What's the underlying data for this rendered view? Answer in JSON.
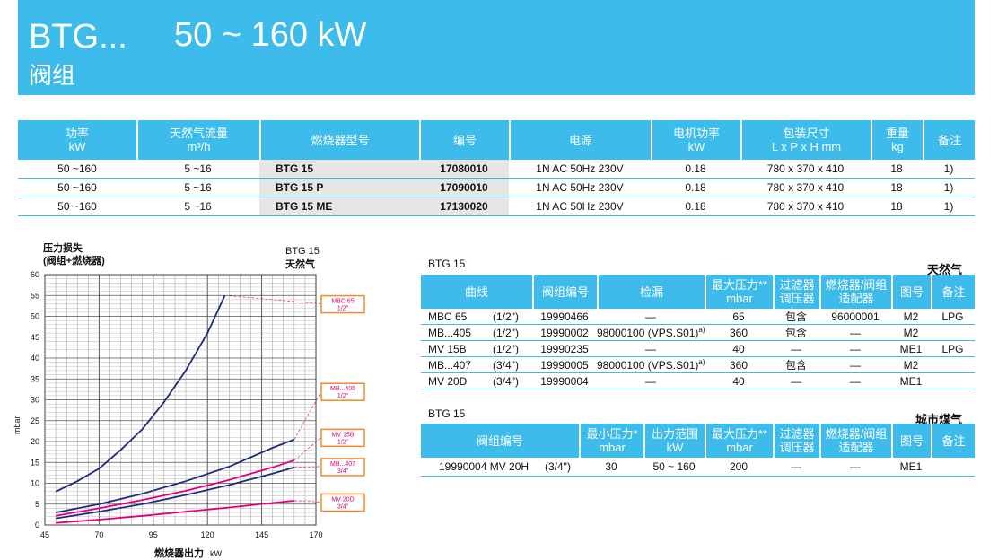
{
  "header": {
    "model": "BTG...",
    "power_range": "50 ~ 160 kW",
    "subtitle": "阀组"
  },
  "main_table": {
    "headers": [
      {
        "l1": "功率",
        "l2": "kW"
      },
      {
        "l1": "天然气流量",
        "l2": "m³/h"
      },
      {
        "l1": "燃烧器型号",
        "l2": ""
      },
      {
        "l1": "编号",
        "l2": ""
      },
      {
        "l1": "电源",
        "l2": ""
      },
      {
        "l1": "电机功率",
        "l2": "kW"
      },
      {
        "l1": "包装尺寸",
        "l2": "L x P x H  mm"
      },
      {
        "l1": "重量",
        "l2": "kg"
      },
      {
        "l1": "备注",
        "l2": ""
      }
    ],
    "rows": [
      [
        "50 ~160",
        "5 ~16",
        "BTG 15",
        "17080010",
        "1N AC 50Hz 230V",
        "0.18",
        "780 x 370 x 410",
        "18",
        "1)"
      ],
      [
        "50 ~160",
        "5 ~16",
        "BTG 15 P",
        "17090010",
        "1N AC 50Hz 230V",
        "0.18",
        "780 x 370 x 410",
        "18",
        "1)"
      ],
      [
        "50 ~160",
        "5 ~16",
        "BTG 15 ME",
        "17130020",
        "1N AC 50Hz 230V",
        "0.18",
        "780 x 370 x 410",
        "18",
        "1)"
      ]
    ]
  },
  "natural_gas_table": {
    "burner": "BTG 15",
    "gas": "天然气",
    "headers": [
      {
        "l1": "曲线",
        "l2": ""
      },
      {
        "l1": "阀组编号",
        "l2": ""
      },
      {
        "l1": "检漏",
        "l2": ""
      },
      {
        "l1": "最大压力**",
        "l2": "mbar"
      },
      {
        "l1": "过滤器",
        "l2": "调压器"
      },
      {
        "l1": "燃烧器/阀组",
        "l2": "适配器"
      },
      {
        "l1": "图号",
        "l2": ""
      },
      {
        "l1": "备注",
        "l2": ""
      }
    ],
    "rows": [
      {
        "curve": "MBC  65",
        "size": "(1/2\")",
        "code": "19990466",
        "leak": "—",
        "leak_sup": "",
        "pmax": "65",
        "filter": "包含",
        "adapter": "96000001",
        "fig": "M2",
        "note": "LPG"
      },
      {
        "curve": "MB...405",
        "size": "(1/2\")",
        "code": "19990002",
        "leak": "98000100 (VPS.S01)",
        "leak_sup": "a)",
        "pmax": "360",
        "filter": "包含",
        "adapter": "—",
        "fig": "M2",
        "note": ""
      },
      {
        "curve": "MV  15B",
        "size": "(1/2\")",
        "code": "19990235",
        "leak": "—",
        "leak_sup": "",
        "pmax": "40",
        "filter": "—",
        "adapter": "—",
        "fig": "ME1",
        "note": "LPG"
      },
      {
        "curve": "MB...407",
        "size": "(3/4\")",
        "code": "19990005",
        "leak": "98000100 (VPS.S01)",
        "leak_sup": "a)",
        "pmax": "360",
        "filter": "包含",
        "adapter": "—",
        "fig": "M2",
        "note": ""
      },
      {
        "curve": "MV  20D",
        "size": "(3/4\")",
        "code": "19990004",
        "leak": "—",
        "leak_sup": "",
        "pmax": "40",
        "filter": "—",
        "adapter": "—",
        "fig": "ME1",
        "note": ""
      }
    ]
  },
  "town_gas_table": {
    "burner": "BTG 15",
    "gas": "城市煤气",
    "headers": [
      {
        "l1": "阀组编号",
        "l2": ""
      },
      {
        "l1": "最小压力*",
        "l2": "mbar"
      },
      {
        "l1": "出力范围",
        "l2": "kW"
      },
      {
        "l1": "最大压力**",
        "l2": "mbar"
      },
      {
        "l1": "过滤器",
        "l2": "调压器"
      },
      {
        "l1": "燃烧器/阀组",
        "l2": "适配器"
      },
      {
        "l1": "图号",
        "l2": ""
      },
      {
        "l1": "备注",
        "l2": ""
      }
    ],
    "rows": [
      {
        "code": "19990004  MV  20H",
        "size": "(3/4\")",
        "pmin": "30",
        "range": "50  ~  160",
        "pmax": "200",
        "filter": "—",
        "adapter": "—",
        "fig": "ME1",
        "note": ""
      }
    ]
  },
  "chart_data": {
    "type": "line",
    "title": "BTG 15\n天然气",
    "title_l1": "BTG 15",
    "title_l2": "天然气",
    "y_title_l1": "压力损失",
    "y_title_l2": "(阀组+燃烧器)",
    "ylabel": "mbar",
    "xlabel": "燃烧器出力",
    "xunit": "kW",
    "xlim": [
      45,
      170
    ],
    "ylim": [
      0,
      60
    ],
    "xticks": [
      45,
      70,
      95,
      120,
      145,
      170
    ],
    "yticks": [
      0,
      5,
      10,
      15,
      20,
      25,
      30,
      35,
      40,
      45,
      50,
      55,
      60
    ],
    "grid": true,
    "series": [
      {
        "name": "MBC 65 1/2\"",
        "label_l1": "MBC  65",
        "label_l2": "1/2\"",
        "color": "#1f2a7a",
        "label_y": 53,
        "x": [
          50,
          60,
          70,
          80,
          90,
          100,
          110,
          120,
          128
        ],
        "y": [
          8,
          10.5,
          13.5,
          18,
          23,
          29.5,
          37,
          46,
          55
        ]
      },
      {
        "name": "MB...405 1/2\"",
        "label_l1": "MB...405",
        "label_l2": "1/2\"",
        "color": "#1f2a7a",
        "label_y": 32,
        "x": [
          50,
          70,
          90,
          110,
          130,
          150,
          160
        ],
        "y": [
          3,
          5,
          7.5,
          10.5,
          14,
          18.5,
          20.5
        ]
      },
      {
        "name": "MV 15B 1/2\"",
        "label_l1": "MV  15B",
        "label_l2": "1/2\"",
        "color": "#e2007a",
        "label_y": 21,
        "x": [
          50,
          70,
          90,
          110,
          130,
          150,
          160
        ],
        "y": [
          2.2,
          4,
          6,
          8.2,
          10.8,
          13.8,
          15.5
        ]
      },
      {
        "name": "MB...407 3/4\"",
        "label_l1": "MB...407",
        "label_l2": "3/4\"",
        "color": "#1f2a7a",
        "label_y": 14,
        "x": [
          50,
          70,
          90,
          110,
          130,
          150,
          160
        ],
        "y": [
          1.6,
          3.2,
          5,
          7.2,
          9.6,
          12.3,
          13.8
        ]
      },
      {
        "name": "MV 20D 3/4\"",
        "label_l1": "MV  20D",
        "label_l2": "3/4\"",
        "color": "#e2007a",
        "label_y": 5.5,
        "x": [
          50,
          70,
          90,
          110,
          130,
          150,
          160
        ],
        "y": [
          0.5,
          1.3,
          2.2,
          3.2,
          4.2,
          5.3,
          5.8
        ]
      }
    ]
  }
}
